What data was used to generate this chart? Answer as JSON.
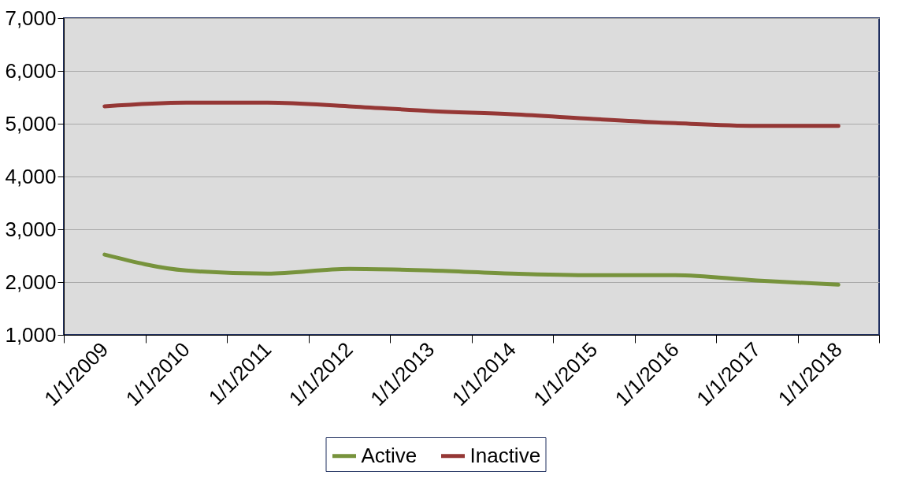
{
  "chart_data": {
    "type": "line",
    "categories": [
      "1/1/2009",
      "1/1/2010",
      "1/1/2011",
      "1/1/2012",
      "1/1/2013",
      "1/1/2014",
      "1/1/2015",
      "1/1/2016",
      "1/1/2017",
      "1/1/2018"
    ],
    "series": [
      {
        "name": "Active",
        "color": "#77933c",
        "values": [
          2520,
          2220,
          2160,
          2250,
          2220,
          2160,
          2130,
          2130,
          2030,
          1950
        ]
      },
      {
        "name": "Inactive",
        "color": "#953735",
        "values": [
          5330,
          5400,
          5400,
          5330,
          5240,
          5180,
          5090,
          5010,
          4960,
          4960
        ]
      }
    ],
    "ylim": [
      1000,
      7000
    ],
    "yticks": [
      {
        "value": 1000,
        "label": "1,000"
      },
      {
        "value": 2000,
        "label": "2,000"
      },
      {
        "value": 3000,
        "label": "3,000"
      },
      {
        "value": 4000,
        "label": "4,000"
      },
      {
        "value": 5000,
        "label": "5,000"
      },
      {
        "value": 6000,
        "label": "6,000"
      },
      {
        "value": 7000,
        "label": "7,000"
      }
    ],
    "grid": "y",
    "legend": "bottom",
    "marker": "none",
    "line_style": "solid"
  }
}
